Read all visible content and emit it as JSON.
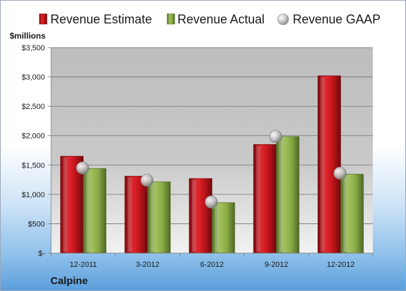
{
  "chart_data": {
    "type": "bar",
    "title": "",
    "unit_label": "$millions",
    "footer": "Calpine",
    "categories": [
      "12-2011",
      "3-2012",
      "6-2012",
      "9-2012",
      "12-2012"
    ],
    "series": [
      {
        "name": "Revenue Estimate",
        "kind": "bar",
        "color": "#c0151b",
        "values": [
          1650,
          1310,
          1270,
          1850,
          3020
        ]
      },
      {
        "name": "Revenue Actual",
        "kind": "bar",
        "color": "#8aaa46",
        "values": [
          1440,
          1215,
          860,
          1985,
          1345
        ]
      },
      {
        "name": "Revenue GAAP",
        "kind": "marker",
        "color": "#bfbfbf",
        "values": [
          1450,
          1240,
          870,
          1985,
          1360
        ]
      }
    ],
    "y_ticks": [
      {
        "value": 0,
        "label": "$-"
      },
      {
        "value": 500,
        "label": "$500"
      },
      {
        "value": 1000,
        "label": "$1,000"
      },
      {
        "value": 1500,
        "label": "$1,500"
      },
      {
        "value": 2000,
        "label": "$2,000"
      },
      {
        "value": 2500,
        "label": "$2,500"
      },
      {
        "value": 3000,
        "label": "$3,000"
      },
      {
        "value": 3500,
        "label": "$3,500"
      }
    ],
    "ylim": [
      0,
      3500
    ],
    "grid": true,
    "legend_position": "top"
  }
}
